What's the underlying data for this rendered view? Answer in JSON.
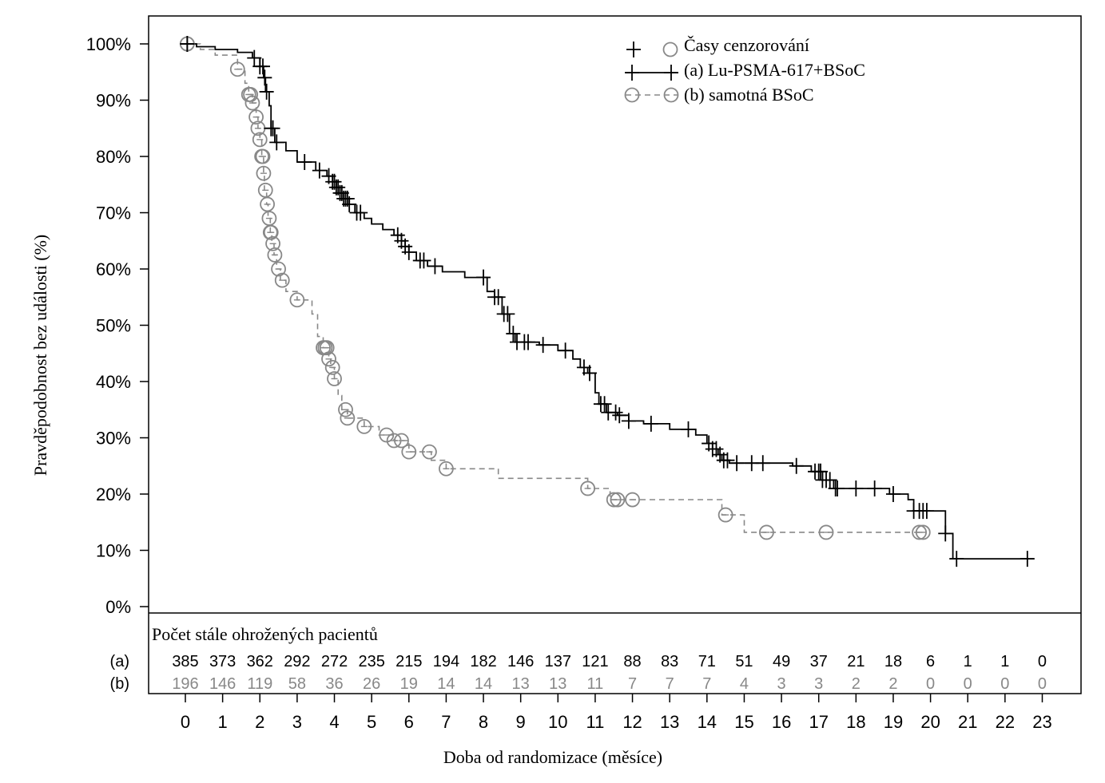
{
  "chart_data": {
    "type": "line",
    "subtype": "kaplan-meier",
    "title": "",
    "xlabel": "Doba od randomizace (měsíce)",
    "ylabel": "Pravděpodobnost bez události (%)",
    "xlim": [
      -0.9,
      24.1
    ],
    "ylim": [
      0,
      100
    ],
    "x_ticks": [
      0,
      1,
      2,
      3,
      4,
      5,
      6,
      7,
      8,
      9,
      10,
      11,
      12,
      13,
      14,
      15,
      16,
      17,
      18,
      19,
      20,
      21,
      22,
      23
    ],
    "x_tick_labels": [
      "0",
      "1",
      "2",
      "3",
      "4",
      "5",
      "6",
      "7",
      "8",
      "9",
      "10",
      "11",
      "12",
      "13",
      "14",
      "15",
      "16",
      "17",
      "18",
      "19",
      "20",
      "21",
      "22",
      "23"
    ],
    "y_ticks": [
      0,
      10,
      20,
      30,
      40,
      50,
      60,
      70,
      80,
      90,
      100
    ],
    "y_tick_labels": [
      "0%",
      "10%",
      "20%",
      "30%",
      "40%",
      "50%",
      "60%",
      "70%",
      "80%",
      "90%",
      "100%"
    ],
    "legend": {
      "position": "top-right",
      "censor_label": "Časy cenzorování",
      "entries": [
        "(a) Lu-PSMA-617+BSoC",
        "(b) samotná BSoC"
      ]
    },
    "series": [
      {
        "name": "(a) Lu-PSMA-617+BSoC",
        "color": "#000000",
        "dash": "solid",
        "marker": "plus",
        "steps": [
          [
            0,
            100
          ],
          [
            0.3,
            99.5
          ],
          [
            0.8,
            99
          ],
          [
            1.4,
            98.5
          ],
          [
            1.8,
            97.5
          ],
          [
            2.0,
            96
          ],
          [
            2.1,
            94
          ],
          [
            2.15,
            91.5
          ],
          [
            2.25,
            89
          ],
          [
            2.3,
            85
          ],
          [
            2.4,
            82.5
          ],
          [
            2.7,
            81
          ],
          [
            3.0,
            79
          ],
          [
            3.5,
            77.5
          ],
          [
            3.8,
            76.5
          ],
          [
            3.95,
            75.5
          ],
          [
            4.05,
            74.5
          ],
          [
            4.15,
            73.5
          ],
          [
            4.25,
            72.5
          ],
          [
            4.4,
            71.5
          ],
          [
            4.55,
            70
          ],
          [
            4.8,
            69
          ],
          [
            5.0,
            68
          ],
          [
            5.3,
            67
          ],
          [
            5.6,
            66
          ],
          [
            5.8,
            65
          ],
          [
            5.9,
            64
          ],
          [
            6.0,
            63
          ],
          [
            6.2,
            61.5
          ],
          [
            6.5,
            60.5
          ],
          [
            6.9,
            59.5
          ],
          [
            7.5,
            58.5
          ],
          [
            8.1,
            56
          ],
          [
            8.3,
            55
          ],
          [
            8.5,
            52
          ],
          [
            8.7,
            48.5
          ],
          [
            8.85,
            47
          ],
          [
            9.5,
            46.5
          ],
          [
            10.0,
            45.5
          ],
          [
            10.4,
            44
          ],
          [
            10.6,
            42.5
          ],
          [
            10.8,
            41.5
          ],
          [
            11.0,
            38
          ],
          [
            11.1,
            36
          ],
          [
            11.3,
            34.5
          ],
          [
            11.6,
            34
          ],
          [
            11.9,
            33
          ],
          [
            12.3,
            32.5
          ],
          [
            13.0,
            31.5
          ],
          [
            13.7,
            30.5
          ],
          [
            14.0,
            29
          ],
          [
            14.15,
            28
          ],
          [
            14.3,
            27
          ],
          [
            14.4,
            26
          ],
          [
            14.6,
            25.5
          ],
          [
            16.3,
            25
          ],
          [
            16.8,
            24
          ],
          [
            17.1,
            22.5
          ],
          [
            17.4,
            21
          ],
          [
            18.9,
            20
          ],
          [
            19.4,
            19
          ],
          [
            19.55,
            17
          ],
          [
            20.4,
            13
          ],
          [
            20.6,
            8.5
          ],
          [
            22.6,
            8.5
          ]
        ],
        "censor_x": [
          0.05,
          0.05,
          1.85,
          2.0,
          2.08,
          2.13,
          2.18,
          2.3,
          2.35,
          2.45,
          3.2,
          3.6,
          3.85,
          3.95,
          4.0,
          4.05,
          4.1,
          4.15,
          4.2,
          4.25,
          4.3,
          4.35,
          4.4,
          4.6,
          4.7,
          5.7,
          5.8,
          5.9,
          6.0,
          6.3,
          6.4,
          6.7,
          8.0,
          8.3,
          8.4,
          8.55,
          8.65,
          8.8,
          8.9,
          9.1,
          9.2,
          9.6,
          10.2,
          10.7,
          10.85,
          11.15,
          11.25,
          11.35,
          11.55,
          11.65,
          11.9,
          12.5,
          13.5,
          14.05,
          14.15,
          14.25,
          14.35,
          14.45,
          14.55,
          14.8,
          15.2,
          15.5,
          16.4,
          16.9,
          17.0,
          17.05,
          17.1,
          17.2,
          17.3,
          17.45,
          17.5,
          18.0,
          18.5,
          19.0,
          19.55,
          19.7,
          19.8,
          19.9,
          20.4,
          20.7,
          22.6
        ],
        "at_risk": [
          385,
          373,
          362,
          292,
          272,
          235,
          215,
          194,
          182,
          146,
          137,
          121,
          88,
          83,
          71,
          51,
          49,
          37,
          21,
          18,
          6,
          1,
          1,
          0
        ]
      },
      {
        "name": "(b) samotná BSoC",
        "color": "#888888",
        "dash": "dashed",
        "marker": "circle",
        "steps": [
          [
            0,
            100
          ],
          [
            0.4,
            99
          ],
          [
            0.8,
            98
          ],
          [
            1.4,
            95.5
          ],
          [
            1.6,
            93
          ],
          [
            1.7,
            91
          ],
          [
            1.8,
            89.5
          ],
          [
            1.9,
            87
          ],
          [
            1.95,
            85
          ],
          [
            2.0,
            83
          ],
          [
            2.05,
            80
          ],
          [
            2.1,
            77
          ],
          [
            2.12,
            74
          ],
          [
            2.18,
            71.5
          ],
          [
            2.22,
            69
          ],
          [
            2.28,
            66.5
          ],
          [
            2.32,
            64.5
          ],
          [
            2.38,
            62.5
          ],
          [
            2.45,
            60
          ],
          [
            2.55,
            58
          ],
          [
            2.7,
            56
          ],
          [
            3.0,
            54.5
          ],
          [
            3.4,
            52
          ],
          [
            3.55,
            48
          ],
          [
            3.7,
            46
          ],
          [
            3.85,
            44
          ],
          [
            3.9,
            42.5
          ],
          [
            4.0,
            40.5
          ],
          [
            4.1,
            37.5
          ],
          [
            4.2,
            35
          ],
          [
            4.35,
            33.5
          ],
          [
            4.8,
            32
          ],
          [
            5.2,
            30.5
          ],
          [
            5.6,
            29.5
          ],
          [
            6.0,
            27.5
          ],
          [
            6.6,
            26
          ],
          [
            7.0,
            24.5
          ],
          [
            8.4,
            22.8
          ],
          [
            10.8,
            21
          ],
          [
            11.4,
            19
          ],
          [
            14.4,
            16.3
          ],
          [
            15.0,
            13.2
          ],
          [
            19.8,
            13.2
          ]
        ],
        "censor_x": [
          0.05,
          0.05,
          1.4,
          1.7,
          1.75,
          1.8,
          1.9,
          1.95,
          2.0,
          2.05,
          2.08,
          2.1,
          2.15,
          2.2,
          2.25,
          2.28,
          2.3,
          2.35,
          2.4,
          2.5,
          2.6,
          3.0,
          3.7,
          3.75,
          3.8,
          3.85,
          3.95,
          4.0,
          4.3,
          4.35,
          4.8,
          5.4,
          5.6,
          5.8,
          6.0,
          6.55,
          7.0,
          10.8,
          11.5,
          11.6,
          12.0,
          14.5,
          15.6,
          17.2,
          19.7,
          19.8
        ],
        "at_risk": [
          196,
          146,
          119,
          58,
          36,
          26,
          19,
          14,
          14,
          13,
          13,
          11,
          7,
          7,
          7,
          4,
          3,
          3,
          2,
          2,
          0,
          0,
          0,
          0
        ]
      }
    ],
    "risk_table": {
      "title": "Počet stále ohrožených pacientů",
      "row_labels": [
        "(a)",
        "(b)"
      ]
    }
  }
}
